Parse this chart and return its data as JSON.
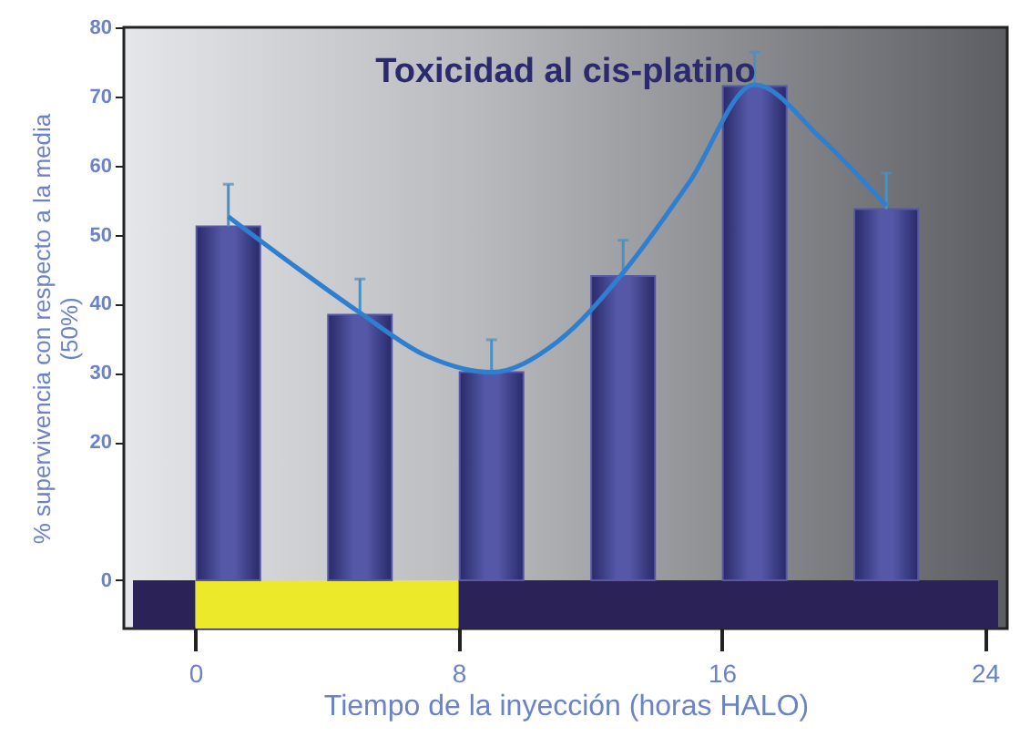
{
  "chart_data": {
    "type": "bar",
    "title": "Toxicidad al cis-platino",
    "xlabel": "Tiempo de la inyección (horas HALO)",
    "ylabel": "% supervivencia con respecto a la media\n(50%)",
    "x": [
      1,
      5,
      9,
      13,
      17,
      21
    ],
    "series": [
      {
        "color": "#5458a6",
        "values": [
          51.2,
          38.4,
          30.1,
          44.0,
          71.5,
          53.7
        ],
        "errors": [
          [
            51.2,
            57.3
          ],
          [
            38.4,
            43.6
          ],
          [
            30.1,
            34.8
          ],
          [
            44.0,
            49.2
          ],
          [
            71.5,
            76.4
          ],
          [
            53.7,
            58.9
          ]
        ]
      },
      {
        "type": "line",
        "color": "#2f7fd0",
        "x": [
          1,
          3,
          5,
          7,
          9,
          11,
          13,
          15,
          17,
          19,
          21
        ],
        "values": [
          52.6,
          45.5,
          38.7,
          32.5,
          30.1,
          34.5,
          44.5,
          57.5,
          71.7,
          64,
          54.2
        ]
      }
    ],
    "xlim": [
      -1.9,
      24.4
    ],
    "xticks": [
      0,
      8,
      16,
      24
    ],
    "ylim": [
      -7,
      80
    ],
    "yticks": [
      0,
      20,
      30,
      40,
      50,
      60,
      70,
      80
    ],
    "bands": [
      {
        "axis": "x",
        "from": -1.9,
        "to": 0,
        "color": "#2b2358"
      },
      {
        "axis": "x",
        "from": 0,
        "to": 8,
        "color": "#ece82a"
      },
      {
        "axis": "x",
        "from": 8,
        "to": 24.4,
        "color": "#2b2358"
      }
    ],
    "grid": false,
    "legend": false
  }
}
